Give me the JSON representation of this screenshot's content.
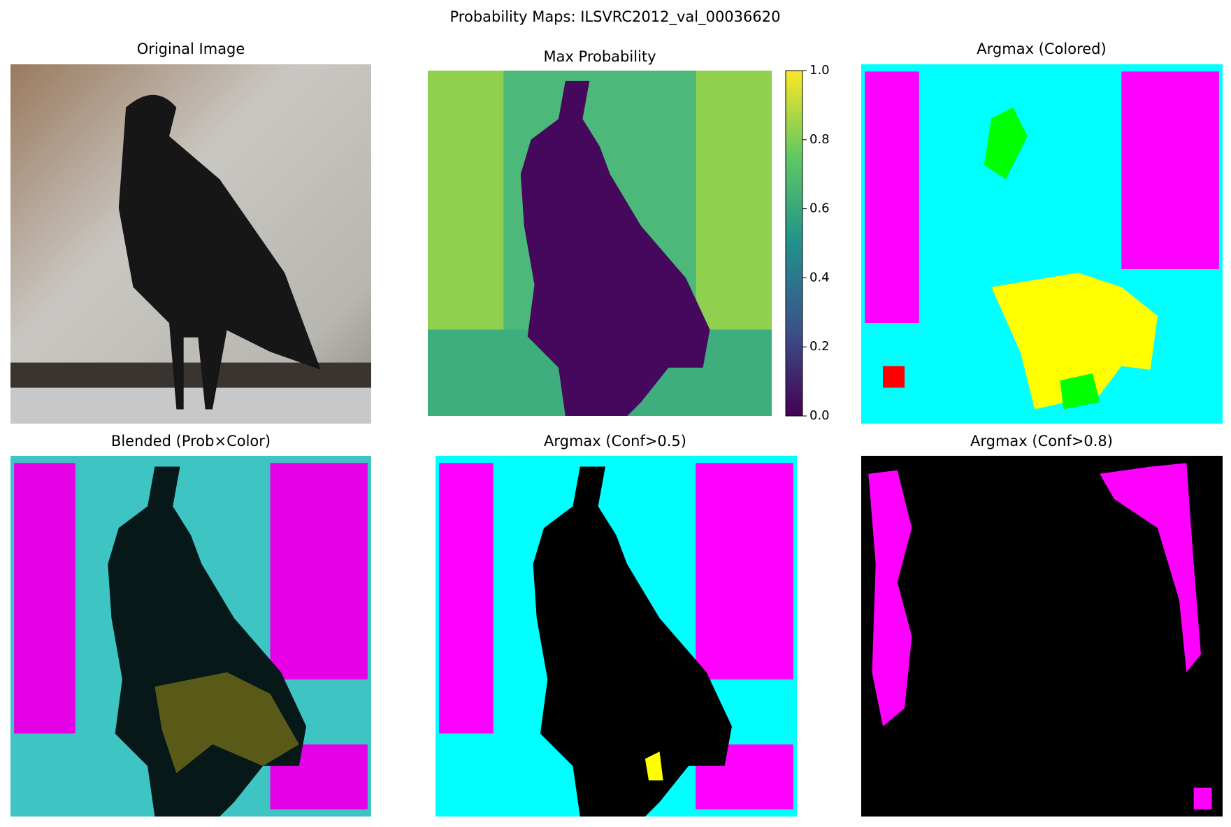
{
  "title": "Probability Maps: ILSVRC2012_val_00036620",
  "panels": [
    {
      "title": "Original Image"
    },
    {
      "title": "Max Probability"
    },
    {
      "title": "Argmax (Colored)"
    },
    {
      "title": "Blended (Prob×Color)"
    },
    {
      "title": "Argmax (Conf>0.5)"
    },
    {
      "title": "Argmax (Conf>0.8)"
    }
  ],
  "colorbar": {
    "ylim": [
      0,
      1
    ],
    "yticks": [
      {
        "value": 0,
        "label": "0.0"
      },
      0.2,
      0.4,
      0.6,
      0.8,
      {
        "value": 1,
        "label": "1.0"
      }
    ]
  }
}
